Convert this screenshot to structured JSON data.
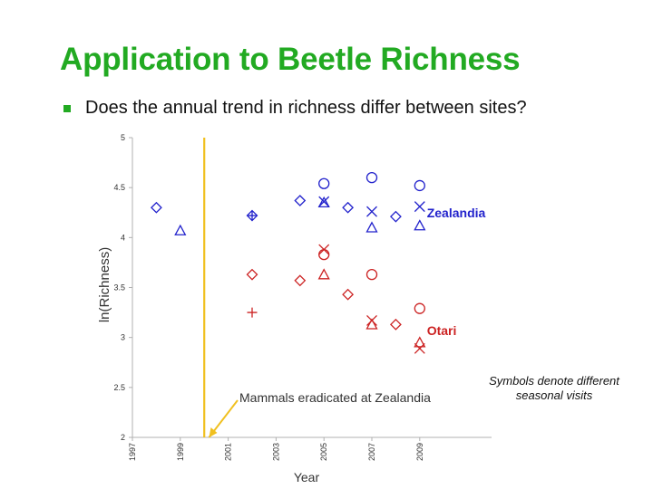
{
  "slide": {
    "title": "Application to Beetle Richness",
    "bullet": "Does the annual trend in richness differ between sites?",
    "note_line1": "Symbols denote different",
    "note_line2": "seasonal visits",
    "accent_color": "#22aa22"
  },
  "chart_data": {
    "type": "scatter",
    "xlabel": "Year",
    "ylabel": "ln(Richness)",
    "xlim": [
      1997,
      2012
    ],
    "ylim": [
      2,
      5
    ],
    "x_ticks": [
      "1997",
      "1999",
      "2001",
      "2003",
      "2005",
      "2007",
      "2009"
    ],
    "y_ticks": [
      "2",
      "2.5",
      "3",
      "3.5",
      "4",
      "4.5",
      "5"
    ],
    "grid": false,
    "annotations": [
      {
        "type": "vline",
        "x": 2000,
        "color": "#f0c020"
      },
      {
        "type": "arrow_label",
        "text": "Mammals eradicated at Zealandia",
        "target_x": 2000.2,
        "target_y": 2.0,
        "color": "#f0c020"
      }
    ],
    "series": [
      {
        "name": "Zealandia",
        "color": "#2222cc",
        "label_x": 2009.3,
        "label_y": 4.25,
        "points": [
          {
            "x": 1998,
            "y": 4.3,
            "marker": "diamond"
          },
          {
            "x": 1999,
            "y": 4.07,
            "marker": "triangle"
          },
          {
            "x": 2002,
            "y": 4.22,
            "marker": "diamond"
          },
          {
            "x": 2002,
            "y": 4.22,
            "marker": "plus"
          },
          {
            "x": 2004,
            "y": 4.37,
            "marker": "diamond"
          },
          {
            "x": 2005,
            "y": 4.54,
            "marker": "circle"
          },
          {
            "x": 2005,
            "y": 4.36,
            "marker": "cross"
          },
          {
            "x": 2005,
            "y": 4.35,
            "marker": "triangle"
          },
          {
            "x": 2006,
            "y": 4.3,
            "marker": "diamond"
          },
          {
            "x": 2007,
            "y": 4.6,
            "marker": "circle"
          },
          {
            "x": 2007,
            "y": 4.26,
            "marker": "cross"
          },
          {
            "x": 2007,
            "y": 4.1,
            "marker": "triangle"
          },
          {
            "x": 2008,
            "y": 4.21,
            "marker": "diamond"
          },
          {
            "x": 2009,
            "y": 4.52,
            "marker": "circle"
          },
          {
            "x": 2009,
            "y": 4.31,
            "marker": "cross"
          },
          {
            "x": 2009,
            "y": 4.12,
            "marker": "triangle"
          }
        ]
      },
      {
        "name": "Otari",
        "color": "#cc2222",
        "label_x": 2009.3,
        "label_y": 3.07,
        "points": [
          {
            "x": 2002,
            "y": 3.63,
            "marker": "diamond"
          },
          {
            "x": 2002,
            "y": 3.25,
            "marker": "plus"
          },
          {
            "x": 2004,
            "y": 3.57,
            "marker": "diamond"
          },
          {
            "x": 2005,
            "y": 3.88,
            "marker": "cross"
          },
          {
            "x": 2005,
            "y": 3.83,
            "marker": "circle"
          },
          {
            "x": 2005,
            "y": 3.63,
            "marker": "triangle"
          },
          {
            "x": 2006,
            "y": 3.43,
            "marker": "diamond"
          },
          {
            "x": 2007,
            "y": 3.63,
            "marker": "circle"
          },
          {
            "x": 2007,
            "y": 3.17,
            "marker": "cross"
          },
          {
            "x": 2007,
            "y": 3.13,
            "marker": "triangle"
          },
          {
            "x": 2008,
            "y": 3.13,
            "marker": "diamond"
          },
          {
            "x": 2009,
            "y": 3.29,
            "marker": "circle"
          },
          {
            "x": 2009,
            "y": 2.95,
            "marker": "triangle"
          },
          {
            "x": 2009,
            "y": 2.89,
            "marker": "cross"
          }
        ]
      }
    ]
  }
}
